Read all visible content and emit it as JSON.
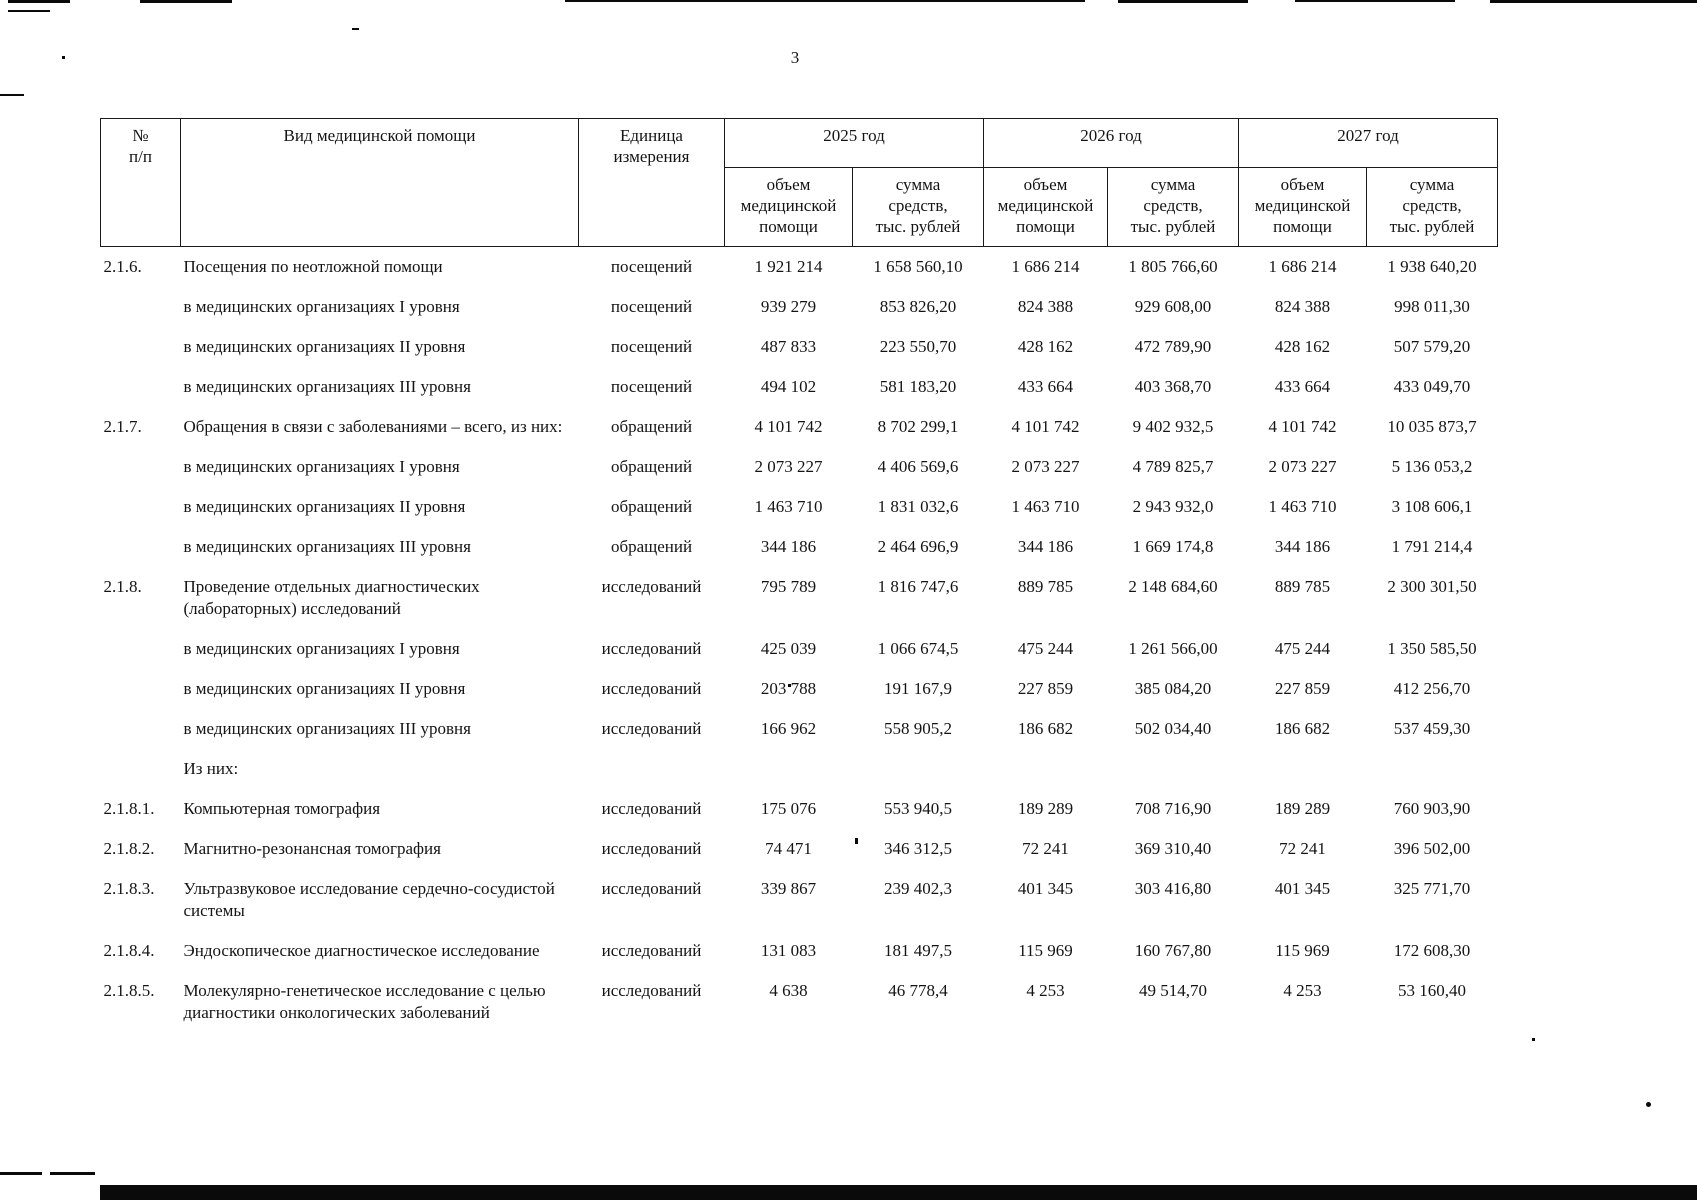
{
  "page": {
    "number": "3"
  },
  "table": {
    "headers": {
      "num": "№\nп/п",
      "kind": "Вид медицинской помощи",
      "unit": "Единица\nизмерения",
      "year_2025": "2025 год",
      "year_2026": "2026 год",
      "year_2027": "2027 год",
      "volume": "объем\nмедицинской\nпомощи",
      "sum": "сумма\nсредств,\nтыс. рублей"
    },
    "rows": [
      {
        "num": "2.1.6.",
        "kind": "Посещения по неотложной помощи",
        "unit": "посещений",
        "values": [
          "1 921 214",
          "1 658 560,10",
          "1 686 214",
          "1 805 766,60",
          "1 686 214",
          "1 938 640,20"
        ]
      },
      {
        "num": "",
        "kind": "в медицинских организациях I уровня",
        "unit": "посещений",
        "values": [
          "939 279",
          "853 826,20",
          "824 388",
          "929 608,00",
          "824 388",
          "998 011,30"
        ]
      },
      {
        "num": "",
        "kind": "в медицинских организациях II уровня",
        "unit": "посещений",
        "values": [
          "487 833",
          "223 550,70",
          "428 162",
          "472 789,90",
          "428 162",
          "507 579,20"
        ]
      },
      {
        "num": "",
        "kind": "в медицинских организациях III уровня",
        "unit": "посещений",
        "values": [
          "494 102",
          "581 183,20",
          "433 664",
          "403 368,70",
          "433 664",
          "433 049,70"
        ]
      },
      {
        "num": "2.1.7.",
        "kind": "Обращения в связи с заболеваниями – всего, из них:",
        "unit": "обращений",
        "values": [
          "4 101 742",
          "8 702 299,1",
          "4 101 742",
          "9 402 932,5",
          "4 101 742",
          "10 035 873,7"
        ]
      },
      {
        "num": "",
        "kind": "в медицинских организациях I уровня",
        "unit": "обращений",
        "values": [
          "2 073 227",
          "4 406 569,6",
          "2 073 227",
          "4 789 825,7",
          "2 073 227",
          "5 136 053,2"
        ]
      },
      {
        "num": "",
        "kind": "в медицинских организациях II уровня",
        "unit": "обращений",
        "values": [
          "1 463 710",
          "1 831 032,6",
          "1 463 710",
          "2 943 932,0",
          "1 463 710",
          "3 108 606,1"
        ]
      },
      {
        "num": "",
        "kind": "в медицинских организациях III уровня",
        "unit": "обращений",
        "values": [
          "344 186",
          "2 464 696,9",
          "344 186",
          "1 669 174,8",
          "344 186",
          "1 791 214,4"
        ]
      },
      {
        "num": "2.1.8.",
        "kind": "Проведение отдельных диагностических (лабораторных) исследований",
        "unit": "исследований",
        "values": [
          "795 789",
          "1 816 747,6",
          "889 785",
          "2 148 684,60",
          "889 785",
          "2 300 301,50"
        ]
      },
      {
        "num": "",
        "kind": "в медицинских организациях I уровня",
        "unit": "исследований",
        "values": [
          "425 039",
          "1 066 674,5",
          "475 244",
          "1 261 566,00",
          "475 244",
          "1 350 585,50"
        ]
      },
      {
        "num": "",
        "kind": "в медицинских организациях II уровня",
        "unit": "исследований",
        "values": [
          "203 788",
          "191 167,9",
          "227 859",
          "385 084,20",
          "227 859",
          "412 256,70"
        ]
      },
      {
        "num": "",
        "kind": "в медицинских организациях III уровня",
        "unit": "исследований",
        "values": [
          "166 962",
          "558 905,2",
          "186 682",
          "502 034,40",
          "186 682",
          "537 459,30"
        ]
      },
      {
        "num": "",
        "kind": "Из них:",
        "unit": "",
        "values": [
          "",
          "",
          "",
          "",
          "",
          ""
        ]
      },
      {
        "num": "2.1.8.1.",
        "kind": "Компьютерная томография",
        "unit": "исследований",
        "values": [
          "175 076",
          "553 940,5",
          "189 289",
          "708 716,90",
          "189 289",
          "760 903,90"
        ]
      },
      {
        "num": "2.1.8.2.",
        "kind": "Магнитно-резонансная томография",
        "unit": "исследований",
        "values": [
          "74 471",
          "346 312,5",
          "72 241",
          "369 310,40",
          "72 241",
          "396 502,00"
        ]
      },
      {
        "num": "2.1.8.3.",
        "kind": "Ультразвуковое исследование сердечно-сосудистой системы",
        "unit": "исследований",
        "values": [
          "339 867",
          "239 402,3",
          "401 345",
          "303 416,80",
          "401 345",
          "325 771,70"
        ]
      },
      {
        "num": "2.1.8.4.",
        "kind": "Эндоскопическое диагностическое исследование",
        "unit": "исследований",
        "values": [
          "131 083",
          "181 497,5",
          "115 969",
          "160 767,80",
          "115 969",
          "172 608,30"
        ]
      },
      {
        "num": "2.1.8.5.",
        "kind": "Молекулярно-генетическое исследование с целью диагностики онкологических заболеваний",
        "unit": "исследований",
        "values": [
          "4 638",
          "46 778,4",
          "4 253",
          "49 514,70",
          "4 253",
          "53 160,40"
        ]
      }
    ]
  }
}
